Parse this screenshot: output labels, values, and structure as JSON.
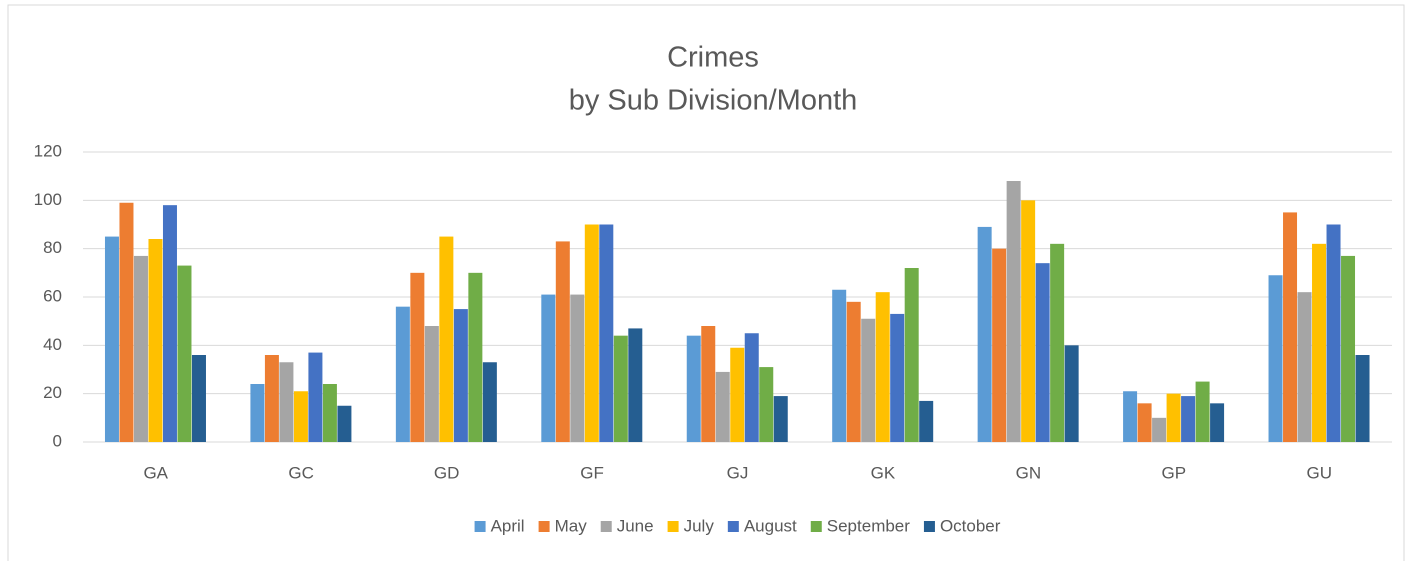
{
  "chart_data": {
    "type": "bar",
    "title": "Crimes",
    "subtitle": "by Sub Division/Month",
    "categories": [
      "GA",
      "GC",
      "GD",
      "GF",
      "GJ",
      "GK",
      "GN",
      "GP",
      "GU"
    ],
    "series": [
      {
        "name": "April",
        "color": "#5b9bd5",
        "values": [
          85,
          24,
          56,
          61,
          44,
          63,
          89,
          21,
          69
        ]
      },
      {
        "name": "May",
        "color": "#ed7d31",
        "values": [
          99,
          36,
          70,
          83,
          48,
          58,
          80,
          16,
          95
        ]
      },
      {
        "name": "June",
        "color": "#a5a5a5",
        "values": [
          77,
          33,
          48,
          61,
          29,
          51,
          108,
          10,
          62
        ]
      },
      {
        "name": "July",
        "color": "#ffc000",
        "values": [
          84,
          21,
          85,
          90,
          39,
          62,
          100,
          20,
          82
        ]
      },
      {
        "name": "August",
        "color": "#4472c4",
        "values": [
          98,
          37,
          55,
          90,
          45,
          53,
          74,
          19,
          90
        ]
      },
      {
        "name": "September",
        "color": "#70ad47",
        "values": [
          73,
          24,
          70,
          44,
          31,
          72,
          82,
          25,
          77
        ]
      },
      {
        "name": "October",
        "color": "#255e91",
        "values": [
          36,
          15,
          33,
          47,
          19,
          17,
          40,
          16,
          36
        ]
      }
    ],
    "ylim": [
      0,
      120
    ],
    "yticks": [
      0,
      20,
      40,
      60,
      80,
      100,
      120
    ],
    "grid": true,
    "legend": "bottom"
  }
}
